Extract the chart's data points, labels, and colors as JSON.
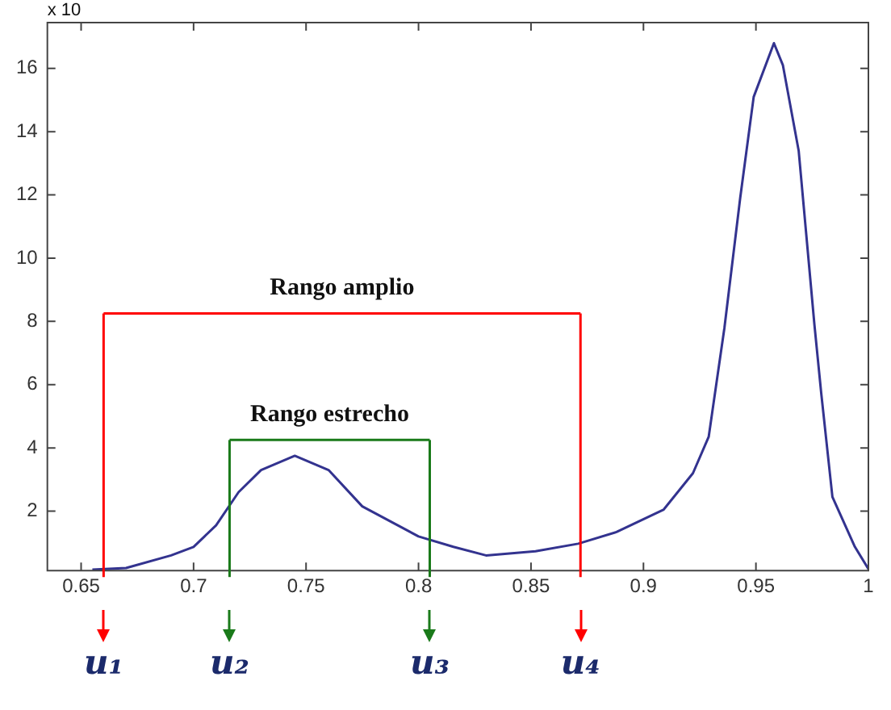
{
  "chart_data": {
    "type": "line",
    "x": [
      0.655,
      0.67,
      0.69,
      0.7,
      0.71,
      0.72,
      0.73,
      0.745,
      0.76,
      0.775,
      0.8,
      0.8155,
      0.83,
      0.852,
      0.871,
      0.888,
      0.909,
      0.922,
      0.929,
      0.936,
      0.943,
      0.949,
      0.958,
      0.962,
      0.969,
      0.976,
      0.979,
      0.984,
      0.994,
      1.0
    ],
    "series": [
      {
        "color": "#33338f",
        "values": [
          0.15,
          0.2,
          0.6,
          0.87,
          1.55,
          2.6,
          3.3,
          3.75,
          3.3,
          2.15,
          1.2,
          0.87,
          0.6,
          0.73,
          0.97,
          1.34,
          2.05,
          3.2,
          4.35,
          7.8,
          11.9,
          15.1,
          16.8,
          16.1,
          13.4,
          7.9,
          5.75,
          2.45,
          0.87,
          0.17
        ]
      },
      {
        "color": "#ff0000",
        "x": [
          0.66,
          0.872
        ],
        "values": [
          8.25,
          8.25
        ]
      },
      {
        "color": "#1a7a1a",
        "x": [
          0.716,
          0.805
        ],
        "values": [
          4.25,
          4.25
        ]
      }
    ],
    "xlim": [
      0.635,
      1.0
    ],
    "xticks": [
      0.65,
      0.7,
      0.75,
      0.8,
      0.85,
      0.9,
      0.95,
      1
    ],
    "ylim": [
      0.12,
      17.45
    ],
    "yticks": [
      2,
      4,
      6,
      8,
      10,
      12,
      14,
      16
    ],
    "grid": false,
    "legend": false,
    "marker": "none",
    "line_style": "solid",
    "ref_lines": [
      {
        "axis": "x",
        "value": 0.66,
        "label": "u₁",
        "color": "#ff0000"
      },
      {
        "axis": "x",
        "value": 0.716,
        "label": "u₂",
        "color": "#1a7a1a"
      },
      {
        "axis": "x",
        "value": 0.805,
        "label": "u₃",
        "color": "#1a7a1a"
      },
      {
        "axis": "x",
        "value": 0.872,
        "label": "u₄",
        "color": "#ff0000"
      }
    ],
    "annotations": [
      "x 10",
      {
        "text": "Rango amplio",
        "x": 0.766,
        "y": 8.25
      },
      {
        "text": "Rango estrecho",
        "x": 0.7605,
        "y": 4.25
      }
    ]
  }
}
